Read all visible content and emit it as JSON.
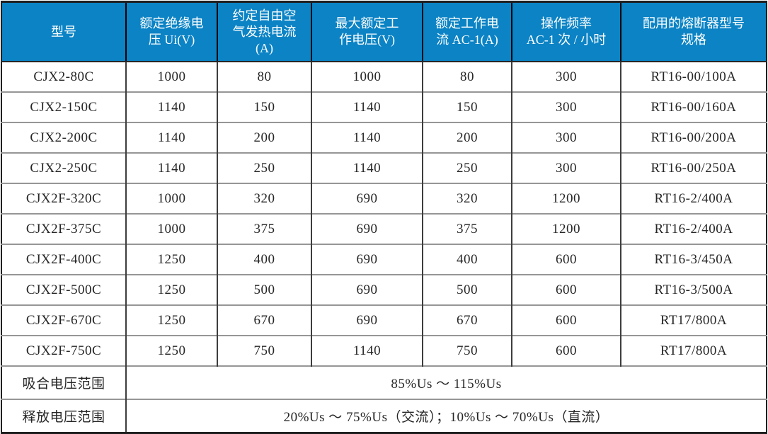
{
  "table": {
    "columns": [
      {
        "label": "型号",
        "lines": [
          "型号"
        ]
      },
      {
        "label": "额定绝缘电压 Ui(V)",
        "lines": [
          "额定绝缘电",
          "压 Ui(V)"
        ]
      },
      {
        "label": "约定自由空气发热电流(A)",
        "lines": [
          "约定自由空",
          "气发热电流",
          "(A)"
        ]
      },
      {
        "label": "最大额定工作电压(V)",
        "lines": [
          "最大额定工",
          "作电压(V)"
        ]
      },
      {
        "label": "额定工作电流 AC-1(A)",
        "lines": [
          "额定工作电",
          "流 AC-1(A)"
        ]
      },
      {
        "label": "操作频率 AC-1 次 / 小时",
        "lines": [
          "操作频率",
          "AC-1 次 / 小时"
        ]
      },
      {
        "label": "配用的熔断器型号规格",
        "lines": [
          "配用的熔断器型号",
          "规格"
        ]
      }
    ],
    "rows": [
      [
        "CJX2-80C",
        "1000",
        "80",
        "1000",
        "80",
        "300",
        "RT16-00/100A"
      ],
      [
        "CJX2-150C",
        "1140",
        "150",
        "1140",
        "150",
        "300",
        "RT16-00/160A"
      ],
      [
        "CJX2-200C",
        "1140",
        "200",
        "1140",
        "200",
        "300",
        "RT16-00/200A"
      ],
      [
        "CJX2-250C",
        "1140",
        "250",
        "1140",
        "250",
        "300",
        "RT16-00/250A"
      ],
      [
        "CJX2F-320C",
        "1000",
        "320",
        "690",
        "320",
        "1200",
        "RT16-2/400A"
      ],
      [
        "CJX2F-375C",
        "1000",
        "375",
        "690",
        "375",
        "1200",
        "RT16-2/400A"
      ],
      [
        "CJX2F-400C",
        "1250",
        "400",
        "690",
        "400",
        "600",
        "RT16-3/450A"
      ],
      [
        "CJX2F-500C",
        "1250",
        "500",
        "690",
        "500",
        "600",
        "RT16-3/500A"
      ],
      [
        "CJX2F-670C",
        "1250",
        "670",
        "690",
        "670",
        "600",
        "RT17/800A"
      ],
      [
        "CJX2F-750C",
        "1250",
        "750",
        "1140",
        "750",
        "600",
        "RT17/800A"
      ]
    ],
    "footer_rows": [
      {
        "label": "吸合电压范围",
        "value": "85%Us ～ 115%Us"
      },
      {
        "label": "释放电压范围",
        "value": "20%Us ～ 75%Us（交流）；10%Us ～ 70%Us（直流）"
      }
    ],
    "colors": {
      "header_bg": "#0b83c5",
      "header_text": "#ffffff",
      "body_text": "#262626",
      "outer_border": "#1f1f1f",
      "vertical_line": "#3d3d3d",
      "horizontal_line": "#969696"
    }
  }
}
